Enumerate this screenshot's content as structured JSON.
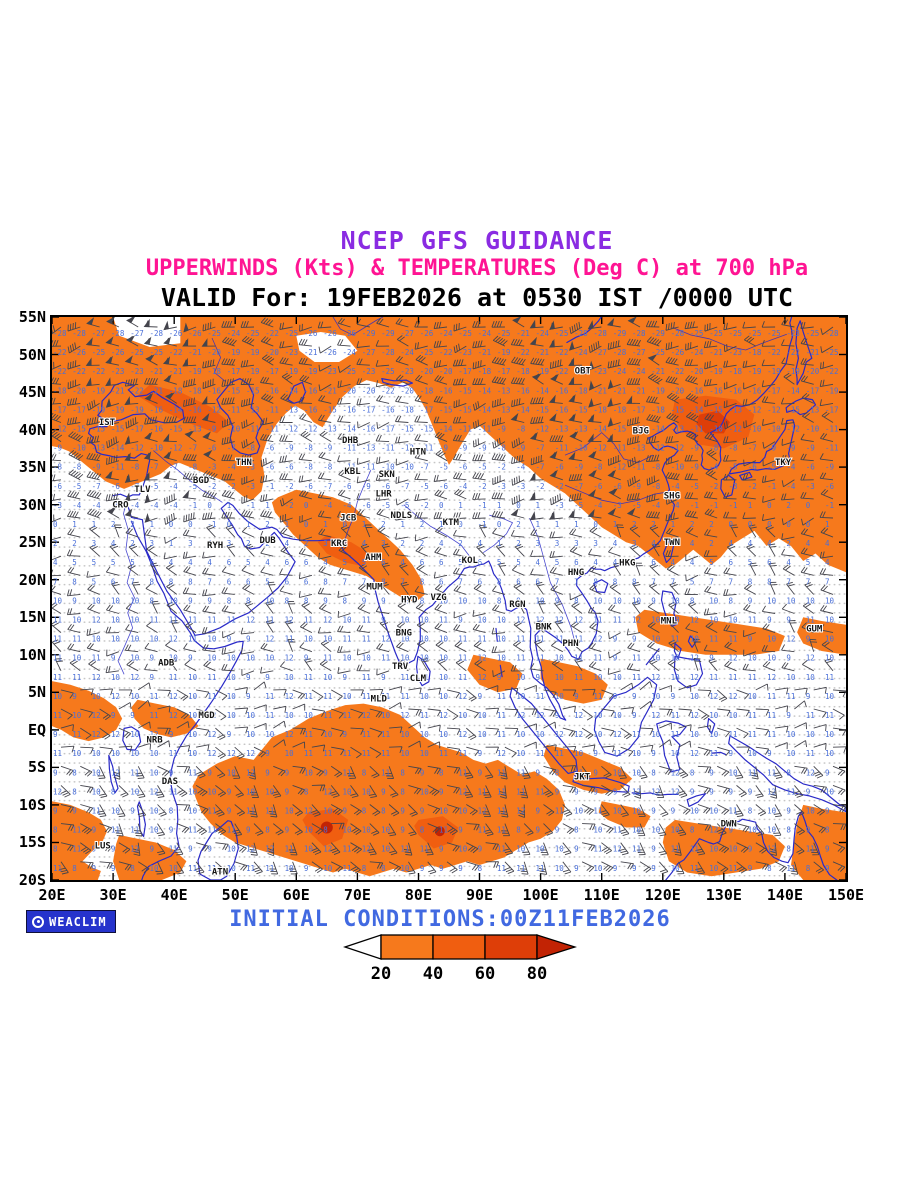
{
  "header": {
    "line1": "NCEP GFS GUIDANCE",
    "line2": "UPPERWINDS (Kts) & TEMPERATURES (Deg C) at 700 hPa",
    "line3": "VALID For: 19FEB2026 at 0530 IST /0000 UTC"
  },
  "footer": {
    "initial": "INITIAL CONDITIONS:00Z11FEB2026"
  },
  "logo": {
    "label": "WEACLIM"
  },
  "colorbar": {
    "tick_labels": [
      "20",
      "40",
      "60",
      "80"
    ]
  },
  "colors": {
    "title1": "#8A2BE2",
    "title2": "#FF1493",
    "title3": "#000000",
    "footer": "#4169E1",
    "coast": "#2A2AC8",
    "temps": "#4A6FD8",
    "barbs": "#45454D",
    "frame": "#000000",
    "logo_bg": "#2633CC",
    "shade": [
      "#F6791C",
      "#F05E10",
      "#DE3E08",
      "#C22304"
    ]
  },
  "map": {
    "lat_labels": [
      "55N",
      "50N",
      "45N",
      "40N",
      "35N",
      "30N",
      "25N",
      "20N",
      "15N",
      "10N",
      "5N",
      "EQ",
      "5S",
      "10S",
      "15S",
      "20S"
    ],
    "lon_labels": [
      "20E",
      "30E",
      "40E",
      "50E",
      "60E",
      "70E",
      "80E",
      "90E",
      "100E",
      "110E",
      "120E",
      "130E",
      "140E",
      "150E"
    ],
    "stations": [
      {
        "code": "IST",
        "lon": 29.0,
        "lat": 41.0
      },
      {
        "code": "CRO",
        "lon": 31.2,
        "lat": 30.0
      },
      {
        "code": "TLV",
        "lon": 34.8,
        "lat": 32.1
      },
      {
        "code": "BGD",
        "lon": 44.4,
        "lat": 33.3
      },
      {
        "code": "THN",
        "lon": 51.4,
        "lat": 35.7
      },
      {
        "code": "RYH",
        "lon": 46.7,
        "lat": 24.6
      },
      {
        "code": "DUB",
        "lon": 55.3,
        "lat": 25.3
      },
      {
        "code": "DHB",
        "lon": 68.8,
        "lat": 38.6
      },
      {
        "code": "KBL",
        "lon": 69.2,
        "lat": 34.5
      },
      {
        "code": "SKN",
        "lon": 74.8,
        "lat": 34.1
      },
      {
        "code": "LHR",
        "lon": 74.3,
        "lat": 31.5
      },
      {
        "code": "JCB",
        "lon": 68.5,
        "lat": 28.3
      },
      {
        "code": "KRC",
        "lon": 67.0,
        "lat": 24.9
      },
      {
        "code": "NDLS",
        "lon": 77.2,
        "lat": 28.6
      },
      {
        "code": "KTM",
        "lon": 85.3,
        "lat": 27.7
      },
      {
        "code": "AHM",
        "lon": 72.6,
        "lat": 23.0
      },
      {
        "code": "KOL",
        "lon": 88.4,
        "lat": 22.6
      },
      {
        "code": "MUM",
        "lon": 72.8,
        "lat": 19.1
      },
      {
        "code": "HYD",
        "lon": 78.5,
        "lat": 17.4
      },
      {
        "code": "VZG",
        "lon": 83.3,
        "lat": 17.7
      },
      {
        "code": "RGN",
        "lon": 96.2,
        "lat": 16.8
      },
      {
        "code": "BNG",
        "lon": 77.6,
        "lat": 13.0
      },
      {
        "code": "BNK",
        "lon": 100.5,
        "lat": 13.8
      },
      {
        "code": "PHN",
        "lon": 104.9,
        "lat": 11.6
      },
      {
        "code": "TRV",
        "lon": 77.0,
        "lat": 8.5
      },
      {
        "code": "CLM",
        "lon": 79.9,
        "lat": 6.9
      },
      {
        "code": "MLD",
        "lon": 73.5,
        "lat": 4.2
      },
      {
        "code": "ADB",
        "lon": 38.7,
        "lat": 9.0
      },
      {
        "code": "MGD",
        "lon": 45.3,
        "lat": 2.0
      },
      {
        "code": "NRB",
        "lon": 36.8,
        "lat": -1.3
      },
      {
        "code": "DAS",
        "lon": 39.3,
        "lat": -6.8
      },
      {
        "code": "LUS",
        "lon": 28.3,
        "lat": -15.4
      },
      {
        "code": "ATN",
        "lon": 47.5,
        "lat": -18.9
      },
      {
        "code": "HTN",
        "lon": 79.9,
        "lat": 37.1
      },
      {
        "code": "OBT",
        "lon": 106.9,
        "lat": 47.9
      },
      {
        "code": "BJG",
        "lon": 116.4,
        "lat": 39.9
      },
      {
        "code": "SHG",
        "lon": 121.5,
        "lat": 31.2
      },
      {
        "code": "TKY",
        "lon": 139.7,
        "lat": 35.7
      },
      {
        "code": "TWN",
        "lon": 121.5,
        "lat": 25.0
      },
      {
        "code": "HKG",
        "lon": 114.2,
        "lat": 22.3
      },
      {
        "code": "HNG",
        "lon": 105.8,
        "lat": 21.0
      },
      {
        "code": "MNL",
        "lon": 121.0,
        "lat": 14.6
      },
      {
        "code": "GUM",
        "lon": 144.8,
        "lat": 13.5
      },
      {
        "code": "JKT",
        "lon": 106.8,
        "lat": -6.2
      },
      {
        "code": "DWN",
        "lon": 130.8,
        "lat": -12.5
      }
    ]
  }
}
